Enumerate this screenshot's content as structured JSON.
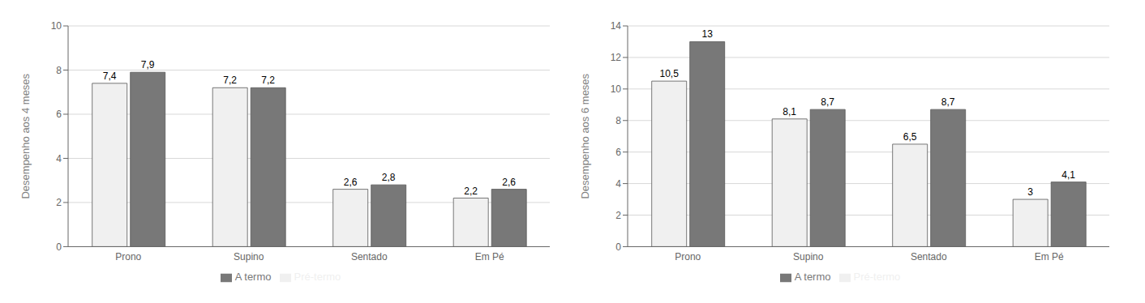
{
  "chart_data": [
    {
      "type": "bar",
      "ylabel": "Desempenho aos 4 meses",
      "categories": [
        "Prono",
        "Supino",
        "Sentado",
        "Em Pé"
      ],
      "series": [
        {
          "name": "Pré-termo",
          "color": "#f0f0f0",
          "values": [
            7.4,
            7.2,
            2.6,
            2.2
          ],
          "value_labels": [
            "7,4",
            "7,2",
            "2,6",
            "2,2"
          ]
        },
        {
          "name": "A termo",
          "color": "#787878",
          "values": [
            7.9,
            7.2,
            2.8,
            2.6
          ],
          "value_labels": [
            "7,9",
            "7,2",
            "2,8",
            "2,6"
          ]
        }
      ],
      "ylim": [
        0,
        10
      ],
      "yticks": [
        0,
        2,
        4,
        6,
        8,
        10
      ],
      "grid": true,
      "data_labels": true,
      "legend": "bottom"
    },
    {
      "type": "bar",
      "ylabel": "Desempenho aos 6 meses",
      "categories": [
        "Prono",
        "Supino",
        "Sentado",
        "Em Pé"
      ],
      "series": [
        {
          "name": "Pré-termo",
          "color": "#f0f0f0",
          "values": [
            10.5,
            8.1,
            6.5,
            3.0
          ],
          "value_labels": [
            "10,5",
            "8,1",
            "6,5",
            "3"
          ]
        },
        {
          "name": "A termo",
          "color": "#787878",
          "values": [
            13.0,
            8.7,
            8.7,
            4.1
          ],
          "value_labels": [
            "13",
            "8,7",
            "8,7",
            "4,1"
          ]
        }
      ],
      "ylim": [
        0,
        14
      ],
      "yticks": [
        0,
        2,
        4,
        6,
        8,
        10,
        12,
        14
      ],
      "grid": true,
      "data_labels": true,
      "legend": "bottom"
    }
  ]
}
